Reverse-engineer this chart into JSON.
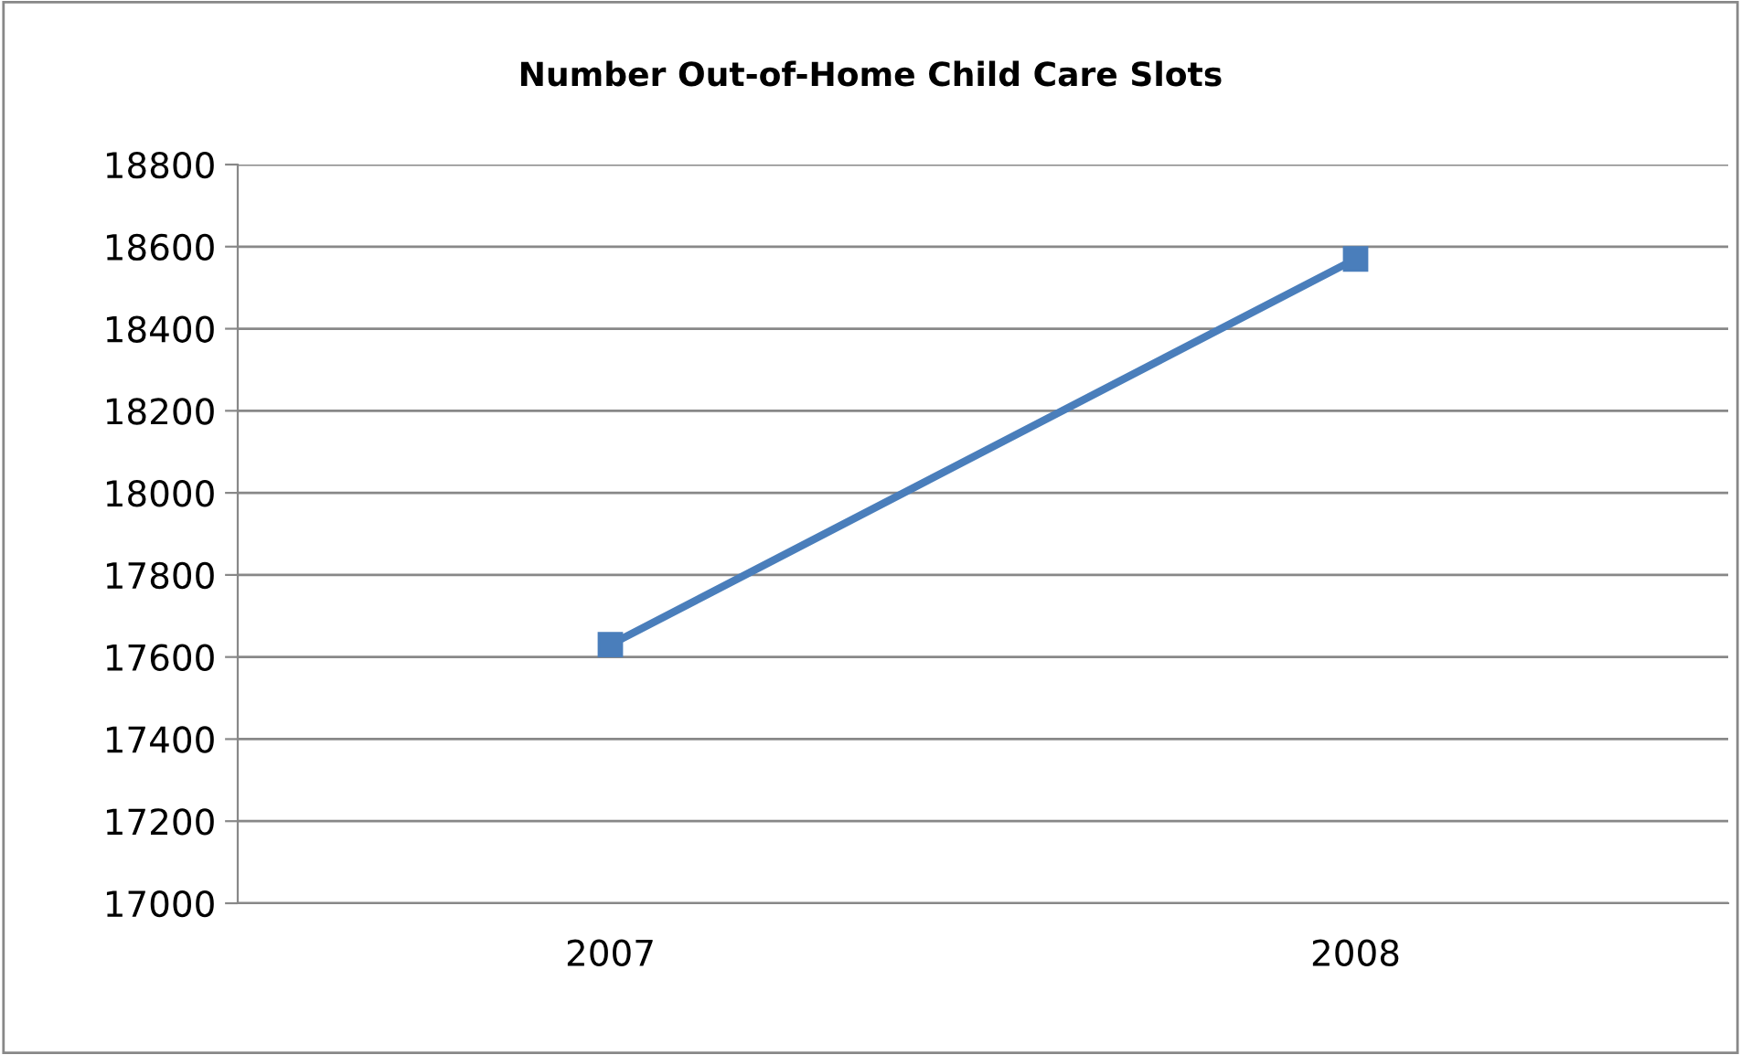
{
  "chart_data": {
    "type": "line",
    "title": "Number Out-of-Home Child Care Slots",
    "categories": [
      "2007",
      "2008"
    ],
    "series": [
      {
        "color": "#4a7ebb",
        "values": [
          17630,
          18570
        ]
      }
    ],
    "ylim": [
      17000,
      18800
    ],
    "yticks": [
      17000,
      17200,
      17400,
      17600,
      17800,
      18000,
      18200,
      18400,
      18600,
      18800
    ],
    "grid": "y",
    "legend": false,
    "marker": "square",
    "line_style": "solid"
  }
}
